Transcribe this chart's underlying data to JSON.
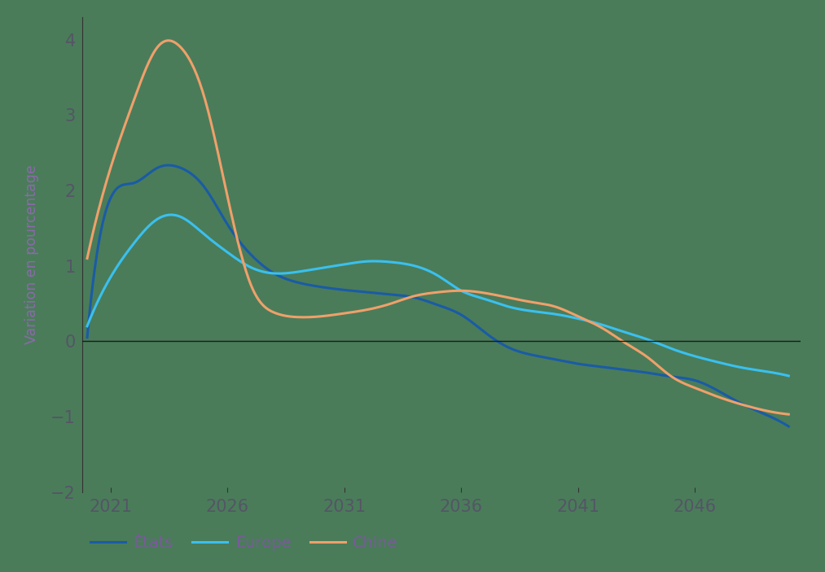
{
  "title": "",
  "ylabel": "Variation en pourcentage",
  "background_color": "#4a7c5a",
  "plot_bg_color": "#4a7c5a",
  "ylabel_color": "#8b6aaa",
  "tick_label_color": "#555566",
  "legend_text_color": "#7a5a9a",
  "legend_labels": [
    "États",
    "Europe",
    "Chine"
  ],
  "line_colors": [
    "#1a5ba6",
    "#3ac0ef",
    "#f0a06a"
  ],
  "ylim": [
    -2.0,
    4.3
  ],
  "xlim": [
    2019.8,
    2050.5
  ],
  "xticks": [
    2021,
    2026,
    2031,
    2036,
    2041,
    2046
  ],
  "yticks": [
    -2,
    -1,
    0,
    1,
    2,
    3,
    4
  ],
  "etats_x": [
    2020,
    2021,
    2022,
    2023,
    2024,
    2025,
    2026,
    2027,
    2028,
    2029,
    2030,
    2031,
    2032,
    2033,
    2034,
    2035,
    2036,
    2037,
    2038,
    2039,
    2040,
    2041,
    2042,
    2043,
    2044,
    2045,
    2046,
    2047,
    2048,
    2049,
    2050
  ],
  "etats_y": [
    0.05,
    1.9,
    2.1,
    2.3,
    2.3,
    2.05,
    1.55,
    1.15,
    0.9,
    0.78,
    0.72,
    0.68,
    0.65,
    0.62,
    0.58,
    0.48,
    0.35,
    0.12,
    -0.08,
    -0.18,
    -0.24,
    -0.3,
    -0.34,
    -0.38,
    -0.42,
    -0.47,
    -0.52,
    -0.66,
    -0.83,
    -0.97,
    -1.13
  ],
  "europe_x": [
    2020,
    2021,
    2022,
    2023,
    2024,
    2025,
    2026,
    2027,
    2028,
    2029,
    2030,
    2031,
    2032,
    2033,
    2034,
    2035,
    2036,
    2037,
    2038,
    2039,
    2040,
    2041,
    2042,
    2043,
    2044,
    2045,
    2046,
    2047,
    2048,
    2049,
    2050
  ],
  "europe_y": [
    0.2,
    0.85,
    1.3,
    1.62,
    1.65,
    1.42,
    1.18,
    0.98,
    0.9,
    0.92,
    0.97,
    1.02,
    1.06,
    1.05,
    1.0,
    0.87,
    0.67,
    0.56,
    0.46,
    0.4,
    0.36,
    0.3,
    0.22,
    0.12,
    0.02,
    -0.1,
    -0.2,
    -0.28,
    -0.35,
    -0.4,
    -0.46
  ],
  "chine_x": [
    2020,
    2021,
    2022,
    2023,
    2024,
    2025,
    2026,
    2027,
    2028,
    2029,
    2030,
    2031,
    2032,
    2033,
    2034,
    2035,
    2036,
    2037,
    2038,
    2039,
    2040,
    2041,
    2042,
    2043,
    2044,
    2045,
    2046,
    2047,
    2048,
    2049,
    2050
  ],
  "chine_y": [
    1.1,
    2.3,
    3.2,
    3.9,
    3.9,
    3.25,
    1.92,
    0.75,
    0.38,
    0.32,
    0.33,
    0.37,
    0.42,
    0.5,
    0.6,
    0.65,
    0.67,
    0.64,
    0.58,
    0.52,
    0.46,
    0.33,
    0.18,
    -0.02,
    -0.22,
    -0.47,
    -0.62,
    -0.74,
    -0.84,
    -0.92,
    -0.97
  ]
}
